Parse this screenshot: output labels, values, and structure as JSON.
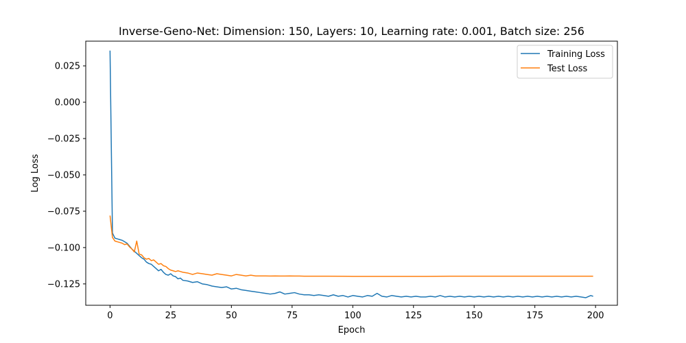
{
  "chart_data": {
    "type": "line",
    "title": "Inverse-Geno-Net: Dimension: 150, Layers: 10, Learning rate: 0.001, Batch size: 256",
    "xlabel": "Epoch",
    "ylabel": "Log Loss",
    "xlim": [
      -10,
      209
    ],
    "ylim": [
      -0.1397,
      0.042
    ],
    "xticks": [
      0,
      25,
      50,
      75,
      100,
      125,
      150,
      175,
      200
    ],
    "xtick_labels": [
      "0",
      "25",
      "50",
      "75",
      "100",
      "125",
      "150",
      "175",
      "200"
    ],
    "yticks": [
      0.025,
      0.0,
      -0.025,
      -0.05,
      -0.075,
      -0.1,
      -0.125
    ],
    "ytick_labels": [
      "0.025",
      "0.000",
      "−0.025",
      "−0.050",
      "−0.075",
      "−0.100",
      "−0.125"
    ],
    "grid": false,
    "legend_position": "top-right",
    "colors": {
      "training": "#1f77b4",
      "test": "#ff7f0e"
    },
    "series": [
      {
        "name": "Training Loss",
        "key": "training",
        "x": [
          0,
          1,
          2,
          3,
          4,
          5,
          6,
          7,
          8,
          9,
          10,
          11,
          12,
          13,
          14,
          15,
          16,
          17,
          18,
          19,
          20,
          21,
          22,
          23,
          24,
          25,
          26,
          27,
          28,
          29,
          30,
          32,
          34,
          36,
          38,
          40,
          42,
          44,
          46,
          48,
          50,
          52,
          54,
          56,
          58,
          60,
          62,
          64,
          66,
          68,
          70,
          72,
          74,
          76,
          78,
          80,
          82,
          84,
          86,
          88,
          90,
          92,
          94,
          96,
          98,
          100,
          102,
          104,
          106,
          108,
          110,
          112,
          114,
          116,
          118,
          120,
          122,
          124,
          126,
          128,
          130,
          132,
          134,
          136,
          138,
          140,
          142,
          144,
          146,
          148,
          150,
          152,
          154,
          156,
          158,
          160,
          162,
          164,
          166,
          168,
          170,
          172,
          174,
          176,
          178,
          180,
          182,
          184,
          186,
          188,
          190,
          192,
          194,
          196,
          198,
          199
        ],
        "y": [
          0.0355,
          -0.09,
          -0.0935,
          -0.094,
          -0.0945,
          -0.095,
          -0.096,
          -0.097,
          -0.099,
          -0.101,
          -0.1025,
          -0.104,
          -0.1055,
          -0.107,
          -0.108,
          -0.11,
          -0.111,
          -0.1115,
          -0.113,
          -0.1145,
          -0.116,
          -0.115,
          -0.117,
          -0.1185,
          -0.119,
          -0.118,
          -0.1195,
          -0.12,
          -0.1215,
          -0.121,
          -0.1225,
          -0.123,
          -0.124,
          -0.1235,
          -0.125,
          -0.1255,
          -0.1265,
          -0.127,
          -0.1275,
          -0.127,
          -0.1285,
          -0.128,
          -0.129,
          -0.1295,
          -0.13,
          -0.1305,
          -0.131,
          -0.1315,
          -0.132,
          -0.1315,
          -0.1305,
          -0.132,
          -0.1315,
          -0.131,
          -0.132,
          -0.1325,
          -0.1325,
          -0.133,
          -0.1325,
          -0.133,
          -0.1335,
          -0.1325,
          -0.1335,
          -0.133,
          -0.134,
          -0.133,
          -0.1335,
          -0.134,
          -0.133,
          -0.1335,
          -0.1315,
          -0.1335,
          -0.134,
          -0.133,
          -0.1335,
          -0.134,
          -0.1335,
          -0.134,
          -0.1335,
          -0.134,
          -0.134,
          -0.1335,
          -0.134,
          -0.133,
          -0.134,
          -0.1335,
          -0.134,
          -0.1335,
          -0.134,
          -0.1335,
          -0.134,
          -0.1335,
          -0.134,
          -0.1335,
          -0.134,
          -0.1335,
          -0.134,
          -0.1335,
          -0.134,
          -0.1335,
          -0.134,
          -0.1335,
          -0.134,
          -0.1335,
          -0.134,
          -0.1335,
          -0.134,
          -0.1335,
          -0.134,
          -0.1335,
          -0.134,
          -0.1335,
          -0.134,
          -0.1345,
          -0.133,
          -0.1335
        ]
      },
      {
        "name": "Test Loss",
        "key": "test",
        "x": [
          0,
          1,
          2,
          3,
          4,
          5,
          6,
          7,
          8,
          9,
          10,
          11,
          12,
          13,
          14,
          15,
          16,
          17,
          18,
          19,
          20,
          21,
          22,
          23,
          24,
          25,
          26,
          27,
          28,
          29,
          30,
          32,
          34,
          36,
          38,
          40,
          42,
          44,
          46,
          48,
          50,
          52,
          54,
          56,
          58,
          60,
          62,
          64,
          66,
          68,
          70,
          72,
          74,
          76,
          78,
          80,
          85,
          90,
          100,
          110,
          120,
          130,
          140,
          150,
          160,
          170,
          180,
          190,
          199
        ],
        "y": [
          -0.078,
          -0.093,
          -0.0955,
          -0.096,
          -0.0965,
          -0.097,
          -0.098,
          -0.0975,
          -0.0995,
          -0.101,
          -0.103,
          -0.0955,
          -0.1045,
          -0.105,
          -0.107,
          -0.108,
          -0.1075,
          -0.109,
          -0.1085,
          -0.11,
          -0.1115,
          -0.111,
          -0.1125,
          -0.113,
          -0.1145,
          -0.1155,
          -0.116,
          -0.1165,
          -0.116,
          -0.1165,
          -0.117,
          -0.1175,
          -0.1185,
          -0.1175,
          -0.118,
          -0.1185,
          -0.119,
          -0.118,
          -0.1185,
          -0.119,
          -0.1195,
          -0.1185,
          -0.119,
          -0.1195,
          -0.119,
          -0.1195,
          -0.1195,
          -0.1195,
          -0.1196,
          -0.1195,
          -0.1196,
          -0.1196,
          -0.1195,
          -0.1196,
          -0.1196,
          -0.1197,
          -0.1197,
          -0.1197,
          -0.1198,
          -0.1198,
          -0.1198,
          -0.1198,
          -0.1197,
          -0.1197,
          -0.1197,
          -0.1197,
          -0.1197,
          -0.1197,
          -0.1197
        ]
      }
    ]
  }
}
